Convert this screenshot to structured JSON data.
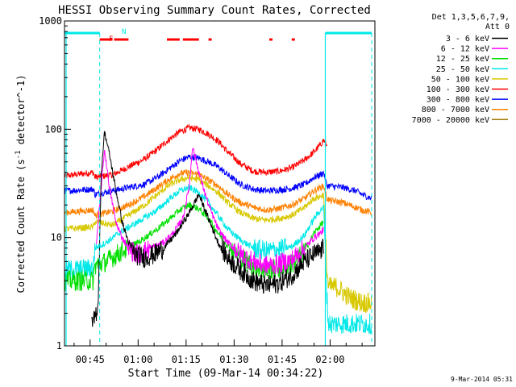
{
  "chart_data": {
    "type": "line",
    "title": "HESSI Observing Summary Count Rates, Corrected",
    "ylabel": "Corrected Count Rate (s^-1 detector^-1)",
    "xlabel": "Start Time (09-Mar-14 00:34:22)",
    "y_scale": "log",
    "ylim": [
      1,
      1000
    ],
    "xlim_minutes": [
      37,
      134
    ],
    "y_ticks": [
      {
        "value": 1,
        "label": "1"
      },
      {
        "value": 10,
        "label": "10"
      },
      {
        "value": 100,
        "label": "100"
      },
      {
        "value": 1000,
        "label": "1000"
      }
    ],
    "x_ticks": [
      {
        "minute": 45,
        "label": "00:45"
      },
      {
        "minute": 60,
        "label": "01:00"
      },
      {
        "minute": 75,
        "label": "01:15"
      },
      {
        "minute": 90,
        "label": "01:30"
      },
      {
        "minute": 105,
        "label": "01:45"
      },
      {
        "minute": 120,
        "label": "02:00"
      }
    ],
    "legend": {
      "placement": "right",
      "header": [
        "Det 1,3,5,6,7,9,",
        "Att 0"
      ],
      "entries": [
        {
          "label": "3 - 6 keV",
          "color": "#000000"
        },
        {
          "label": "6 - 12 keV",
          "color": "#ff00ff"
        },
        {
          "label": "12 - 25 keV",
          "color": "#00e000"
        },
        {
          "label": "25 - 50 keV",
          "color": "#00e8e8"
        },
        {
          "label": "50 - 100 keV",
          "color": "#d8c800"
        },
        {
          "label": "100 - 300 keV",
          "color": "#ff0000"
        },
        {
          "label": "300 - 800 keV",
          "color": "#0000ff"
        },
        {
          "label": "800 - 7000 keV",
          "color": "#ff8000"
        },
        {
          "label": "7000 - 20000 keV",
          "color": "#a07800"
        }
      ]
    },
    "flags": [
      {
        "label": "F",
        "color": "#ff0000"
      },
      {
        "label": "N",
        "color": "#00e8e8"
      }
    ],
    "series": [
      {
        "name": "100 - 300 keV",
        "color": "#ff0000",
        "x": [
          37,
          46,
          46.5,
          52,
          57,
          62,
          66,
          70,
          73,
          76,
          79,
          82,
          85,
          88,
          92,
          96,
          100,
          104,
          108,
          112,
          115,
          117,
          118,
          119
        ],
        "y": [
          37,
          40,
          36,
          38,
          45,
          53,
          65,
          82,
          95,
          103,
          100,
          90,
          78,
          62,
          48,
          41,
          40,
          41,
          44,
          52,
          62,
          72,
          80,
          70
        ]
      },
      {
        "name": "300 - 800 keV",
        "color": "#0000ff",
        "x": [
          37,
          46,
          46.5,
          52,
          57,
          62,
          66,
          70,
          73,
          76,
          79,
          82,
          85,
          88,
          92,
          96,
          100,
          104,
          108,
          112,
          115,
          117,
          118,
          119,
          120,
          124,
          128,
          130,
          133
        ],
        "y": [
          27,
          28,
          25,
          27,
          29,
          31,
          36,
          44,
          51,
          56,
          54,
          50,
          45,
          38,
          31,
          28,
          27,
          27.5,
          28.5,
          31,
          36,
          38,
          40,
          30,
          30,
          29,
          27,
          25,
          23
        ]
      },
      {
        "name": "800 - 7000 keV",
        "color": "#ff8000",
        "x": [
          37,
          46,
          46.5,
          52,
          57,
          62,
          66,
          70,
          73,
          76,
          79,
          82,
          85,
          88,
          92,
          96,
          100,
          104,
          108,
          112,
          115,
          117,
          118,
          119,
          120,
          124,
          128,
          130,
          133
        ],
        "y": [
          17,
          18,
          16,
          17.5,
          20,
          24,
          29,
          35,
          39,
          40,
          38,
          34,
          30,
          25,
          21,
          19,
          18,
          18.5,
          20,
          23,
          27,
          29,
          30,
          23,
          22,
          21,
          19,
          18,
          17
        ]
      },
      {
        "name": "50 - 100 keV",
        "color": "#d8c800",
        "x": [
          37,
          46,
          46.5,
          52,
          57,
          62,
          66,
          70,
          73,
          76,
          79,
          82,
          85,
          88,
          92,
          96,
          100,
          104,
          108,
          112,
          115,
          117,
          118,
          119,
          119.5,
          122,
          126,
          130,
          133
        ],
        "y": [
          12,
          12.5,
          14,
          13,
          16,
          20,
          25,
          31,
          34,
          36,
          34,
          30,
          26,
          21,
          17,
          15,
          14.5,
          15,
          16,
          19,
          23,
          24,
          25,
          5,
          3.5,
          3.5,
          2.8,
          2.5,
          2.5
        ]
      },
      {
        "name": "25 - 50 keV",
        "color": "#00e8e8",
        "x": [
          37,
          46,
          46.5,
          50,
          55,
          60,
          66,
          70,
          73,
          76,
          79,
          82,
          85,
          88,
          92,
          96,
          100,
          104,
          108,
          112,
          115,
          117,
          118,
          119,
          119.5,
          124,
          128,
          133
        ],
        "y": [
          5,
          5.2,
          8,
          9,
          11.5,
          14,
          18,
          23,
          27,
          29,
          26,
          21,
          16,
          12,
          9.5,
          8,
          7.5,
          7.8,
          8.2,
          10.5,
          15,
          18,
          19,
          2.8,
          1.6,
          1.6,
          1.6,
          1.6
        ]
      },
      {
        "name": "12 - 25 keV",
        "color": "#00e000",
        "x": [
          37,
          46,
          46.5,
          50,
          55,
          60,
          66,
          70,
          73,
          76,
          79,
          82,
          85,
          88,
          92,
          96,
          100,
          104,
          108,
          112,
          115,
          117,
          118
        ],
        "y": [
          4,
          4,
          5.5,
          6,
          7.5,
          9,
          12,
          15,
          18,
          20,
          18.5,
          15,
          11,
          8.5,
          6.5,
          5.5,
          5,
          5.2,
          5.7,
          7.5,
          11,
          13,
          14
        ]
      },
      {
        "name": "6 - 12 keV",
        "color": "#ff00ff",
        "x": [
          47,
          48.5,
          49.5,
          51,
          53,
          55,
          57,
          60,
          64,
          68,
          71,
          74,
          76,
          77,
          79,
          82,
          85,
          88,
          92,
          96,
          100,
          104,
          108,
          112,
          115,
          117,
          118
        ],
        "y": [
          9,
          30,
          65,
          30,
          14,
          10,
          8,
          7,
          8,
          9,
          11,
          15,
          30,
          70,
          40,
          20,
          12,
          9,
          7,
          6,
          5.5,
          5.7,
          6.2,
          8,
          10,
          11,
          12
        ]
      },
      {
        "name": "3 - 6 keV",
        "color": "#000000",
        "x": [
          45.5,
          46.5,
          47.5,
          48.5,
          49.5,
          51,
          53,
          55,
          57,
          59,
          62,
          65,
          68,
          72,
          76,
          79,
          82,
          85,
          88,
          92,
          96,
          100,
          104,
          108,
          112,
          115,
          117,
          118
        ],
        "y": [
          1.5,
          1.8,
          2.5,
          40,
          95,
          60,
          28,
          14,
          9,
          7,
          6.5,
          7,
          8,
          11,
          17,
          25,
          15,
          9,
          6.5,
          5,
          4,
          3.6,
          3.8,
          4.5,
          6,
          7,
          7.5,
          8
        ]
      }
    ]
  }
}
